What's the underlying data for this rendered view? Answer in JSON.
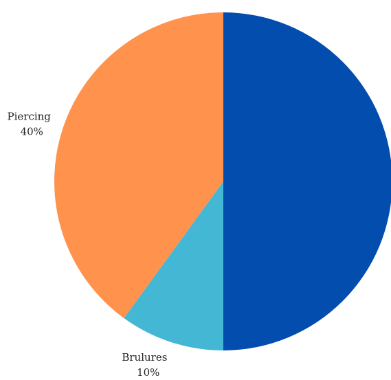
{
  "chart_data": {
    "type": "pie",
    "title": "",
    "slices": [
      {
        "label": "",
        "value": 50,
        "value_label": "",
        "color": "#024DAD"
      },
      {
        "label": "Brulures",
        "value": 10,
        "value_label": "10%",
        "color": "#44B7D5"
      },
      {
        "label": "Piercing",
        "value": 40,
        "value_label": "40%",
        "color": "#FF924D"
      }
    ],
    "start_angle": "12 o'clock",
    "direction": "clockwise",
    "legend": "none"
  }
}
